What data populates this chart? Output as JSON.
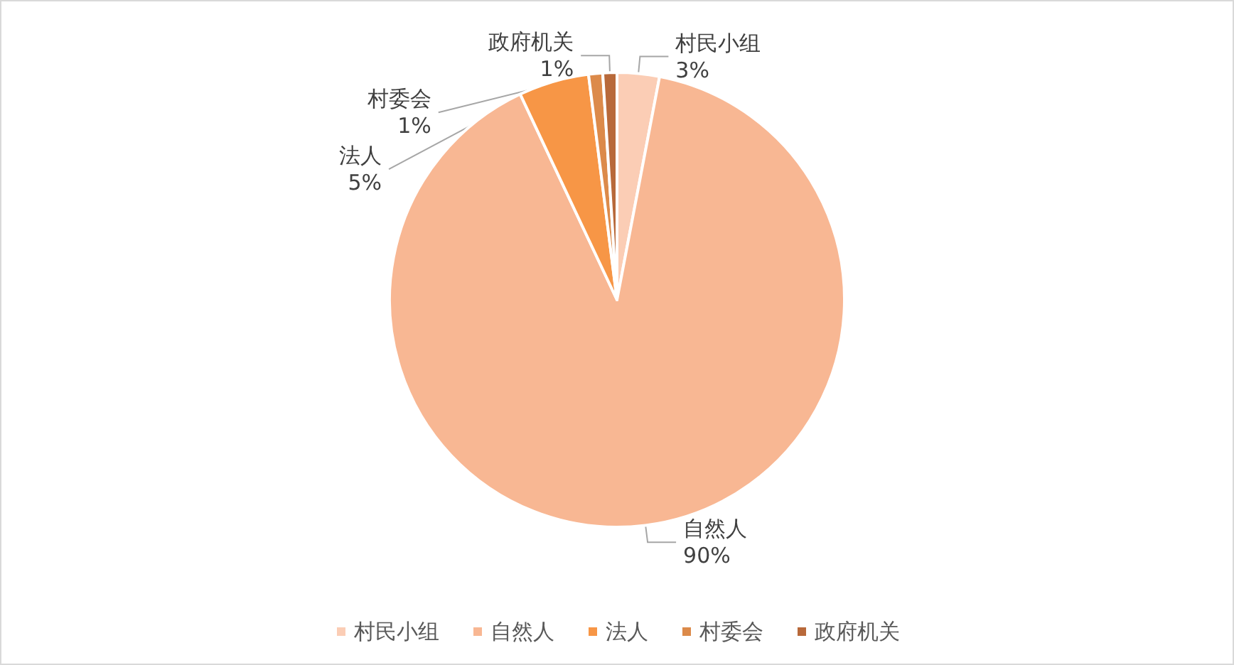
{
  "chart_data": {
    "type": "pie",
    "categories": [
      "村民小组",
      "自然人",
      "法人",
      "村委会",
      "政府机关"
    ],
    "values": [
      3,
      90,
      5,
      1,
      1
    ],
    "value_labels": [
      "3%",
      "90%",
      "5%",
      "1%",
      "1%"
    ],
    "colors": [
      "#fbcdb5",
      "#f8b793",
      "#f79646",
      "#dc8a4a",
      "#b8693a"
    ],
    "legend": "bottom"
  }
}
